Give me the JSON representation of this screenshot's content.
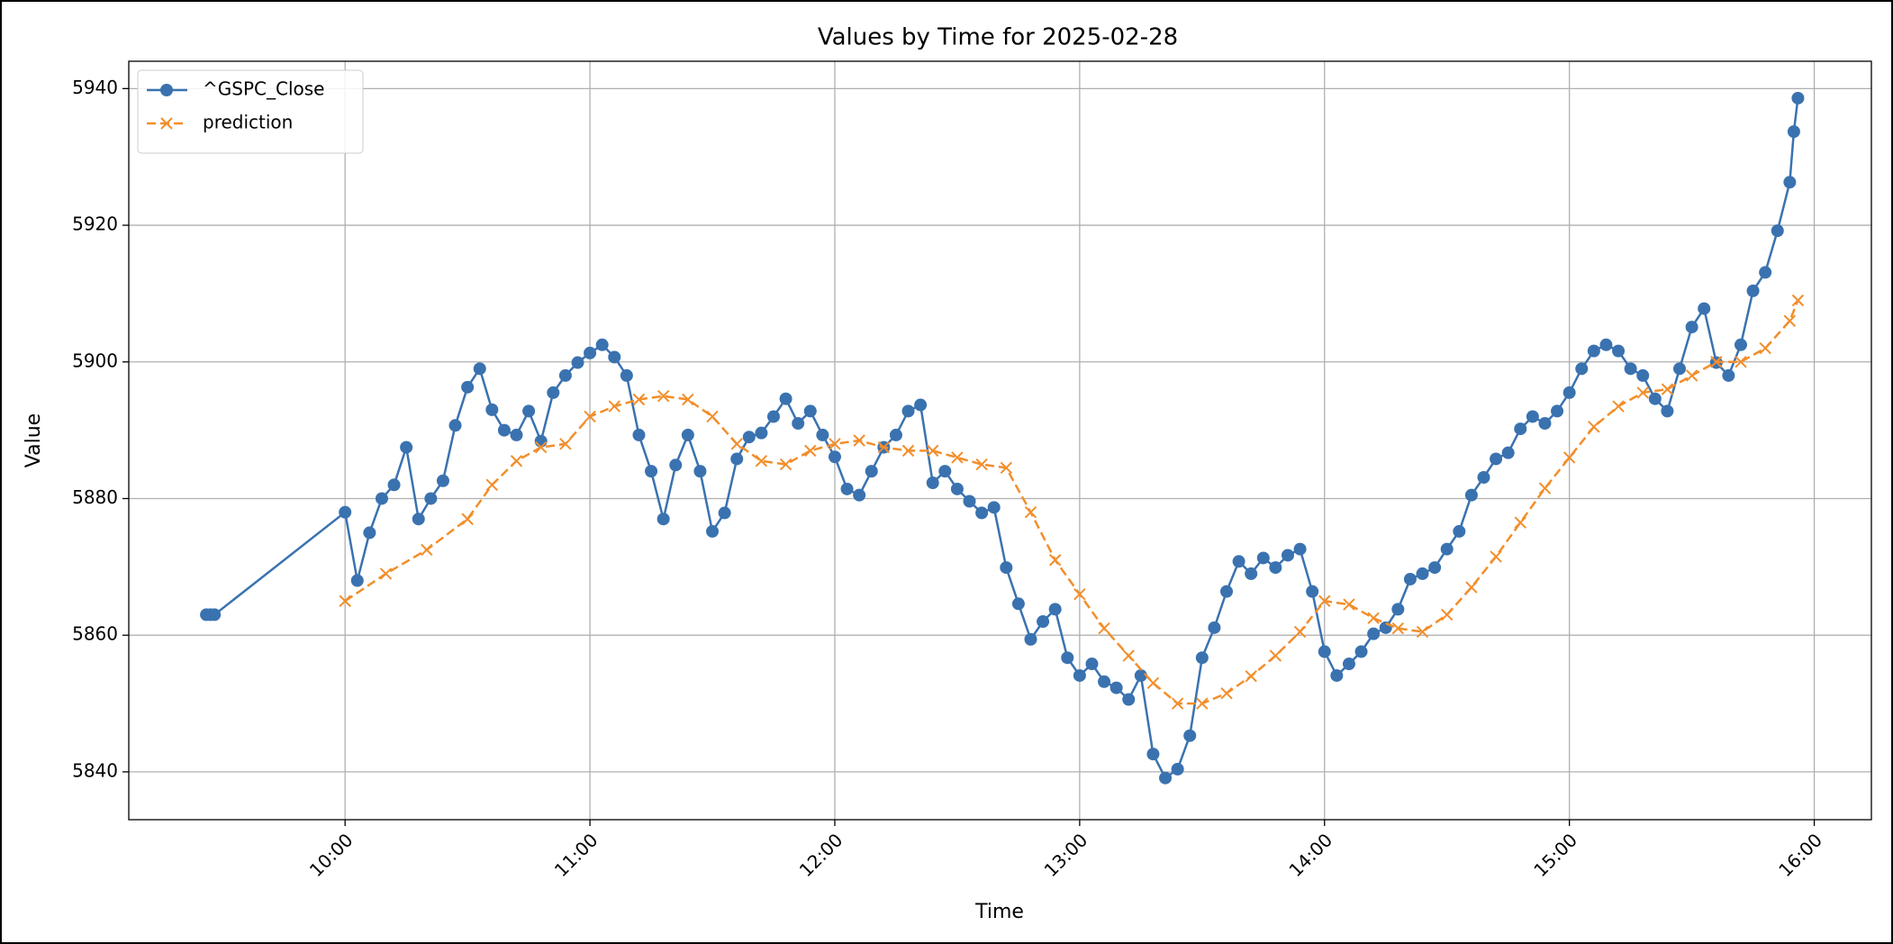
{
  "chart_data": {
    "type": "line",
    "title": "Values by Time for 2025-02-28",
    "x_label": "Time",
    "y_label": "Value",
    "xlim": [
      "09:07",
      "16:14"
    ],
    "xticks": [
      "10:00",
      "11:00",
      "12:00",
      "13:00",
      "14:00",
      "15:00",
      "16:00"
    ],
    "ylim": [
      5833,
      5944
    ],
    "yticks": [
      5840,
      5860,
      5880,
      5900,
      5920,
      5940
    ],
    "grid": true,
    "legend": "upper left",
    "series": [
      {
        "name": "^GSPC_Close",
        "color": "#3a72b0",
        "marker": "o",
        "linestyle": "solid",
        "x": [
          "09:26",
          "09:27",
          "09:28",
          "10:00",
          "10:03",
          "10:06",
          "10:09",
          "10:12",
          "10:15",
          "10:18",
          "10:21",
          "10:24",
          "10:27",
          "10:30",
          "10:33",
          "10:36",
          "10:39",
          "10:42",
          "10:45",
          "10:48",
          "10:51",
          "10:54",
          "10:57",
          "11:00",
          "11:03",
          "11:06",
          "11:09",
          "11:12",
          "11:15",
          "11:18",
          "11:21",
          "11:24",
          "11:27",
          "11:30",
          "11:33",
          "11:36",
          "11:39",
          "11:42",
          "11:45",
          "11:48",
          "11:51",
          "11:54",
          "11:57",
          "12:00",
          "12:03",
          "12:06",
          "12:09",
          "12:12",
          "12:15",
          "12:18",
          "12:21",
          "12:24",
          "12:27",
          "12:30",
          "12:33",
          "12:36",
          "12:39",
          "12:42",
          "12:45",
          "12:48",
          "12:51",
          "12:54",
          "12:57",
          "13:00",
          "13:03",
          "13:06",
          "13:09",
          "13:12",
          "13:15",
          "13:18",
          "13:21",
          "13:24",
          "13:27",
          "13:30",
          "13:33",
          "13:36",
          "13:39",
          "13:42",
          "13:45",
          "13:48",
          "13:51",
          "13:54",
          "13:57",
          "14:00",
          "14:03",
          "14:06",
          "14:09",
          "14:12",
          "14:15",
          "14:18",
          "14:21",
          "14:24",
          "14:27",
          "14:30",
          "14:33",
          "14:36",
          "14:39",
          "14:42",
          "14:45",
          "14:48",
          "14:51",
          "14:54",
          "14:57",
          "15:00",
          "15:03",
          "15:06",
          "15:09",
          "15:12",
          "15:15",
          "15:18",
          "15:21",
          "15:24",
          "15:27",
          "15:30",
          "15:33",
          "15:36",
          "15:39",
          "15:42",
          "15:45",
          "15:48",
          "15:51",
          "15:54",
          "15:55",
          "15:56"
        ],
        "values": [
          5863,
          5863,
          5863,
          5878,
          5868,
          5875,
          5880,
          5882,
          5887.5,
          5877,
          5880,
          5882.6,
          5890.7,
          5896.3,
          5899,
          5893,
          5890,
          5889.3,
          5892.8,
          5888.4,
          5895.5,
          5898,
          5899.9,
          5901.3,
          5902.5,
          5900.7,
          5898,
          5889.3,
          5884,
          5877,
          5884.9,
          5889.3,
          5884,
          5875.2,
          5877.9,
          5885.8,
          5889,
          5889.6,
          5892,
          5894.6,
          5891,
          5892.8,
          5889.3,
          5886.1,
          5881.4,
          5880.5,
          5884,
          5887.5,
          5889.3,
          5892.8,
          5893.7,
          5882.3,
          5884,
          5881.4,
          5879.6,
          5877.9,
          5878.7,
          5869.9,
          5864.6,
          5859.4,
          5862,
          5863.8,
          5856.7,
          5854.1,
          5855.8,
          5853.2,
          5852.3,
          5850.6,
          5854.1,
          5842.6,
          5839.1,
          5840.4,
          5845.3,
          5856.7,
          5861.1,
          5866.4,
          5870.8,
          5869,
          5871.3,
          5869.9,
          5871.7,
          5872.6,
          5866.4,
          5857.6,
          5854.1,
          5855.8,
          5857.6,
          5860.2,
          5861.1,
          5863.8,
          5868.2,
          5869,
          5869.9,
          5872.6,
          5875.2,
          5880.5,
          5883.1,
          5885.8,
          5886.7,
          5890.2,
          5892,
          5891,
          5892.8,
          5895.5,
          5899,
          5901.6,
          5902.5,
          5901.6,
          5899,
          5898,
          5894.6,
          5892.8,
          5899,
          5905.1,
          5907.8,
          5899.9,
          5898,
          5902.5,
          5910.4,
          5913.1,
          5919.2,
          5926.3,
          5933.7,
          5938.6
        ]
      },
      {
        "name": "prediction",
        "color": "#f28e2b",
        "marker": "x",
        "linestyle": "dashed",
        "x": [
          "10:00",
          "10:10",
          "10:20",
          "10:30",
          "10:36",
          "10:42",
          "10:48",
          "10:54",
          "11:00",
          "11:06",
          "11:12",
          "11:18",
          "11:24",
          "11:30",
          "11:36",
          "11:42",
          "11:48",
          "11:54",
          "12:00",
          "12:06",
          "12:12",
          "12:18",
          "12:24",
          "12:30",
          "12:36",
          "12:42",
          "12:48",
          "12:54",
          "13:00",
          "13:06",
          "13:12",
          "13:18",
          "13:24",
          "13:30",
          "13:36",
          "13:42",
          "13:48",
          "13:54",
          "14:00",
          "14:06",
          "14:12",
          "14:18",
          "14:24",
          "14:30",
          "14:36",
          "14:42",
          "14:48",
          "14:54",
          "15:00",
          "15:06",
          "15:12",
          "15:18",
          "15:24",
          "15:30",
          "15:36",
          "15:42",
          "15:48",
          "15:54",
          "15:56"
        ],
        "values": [
          5865,
          5869,
          5872.5,
          5877,
          5882,
          5885.5,
          5887.5,
          5888,
          5892,
          5893.5,
          5894.5,
          5895,
          5894.5,
          5892,
          5888,
          5885.5,
          5885,
          5887,
          5888,
          5888.5,
          5887.5,
          5887,
          5887,
          5886,
          5885,
          5884.5,
          5878,
          5871,
          5866,
          5861,
          5857,
          5853,
          5850,
          5850,
          5851.5,
          5854,
          5857,
          5860.5,
          5865,
          5864.5,
          5862.5,
          5861,
          5860.5,
          5863,
          5867,
          5871.5,
          5876.5,
          5881.5,
          5886,
          5890.5,
          5893.5,
          5895.5,
          5896,
          5898,
          5900,
          5900,
          5902,
          5906,
          5909
        ]
      }
    ]
  }
}
